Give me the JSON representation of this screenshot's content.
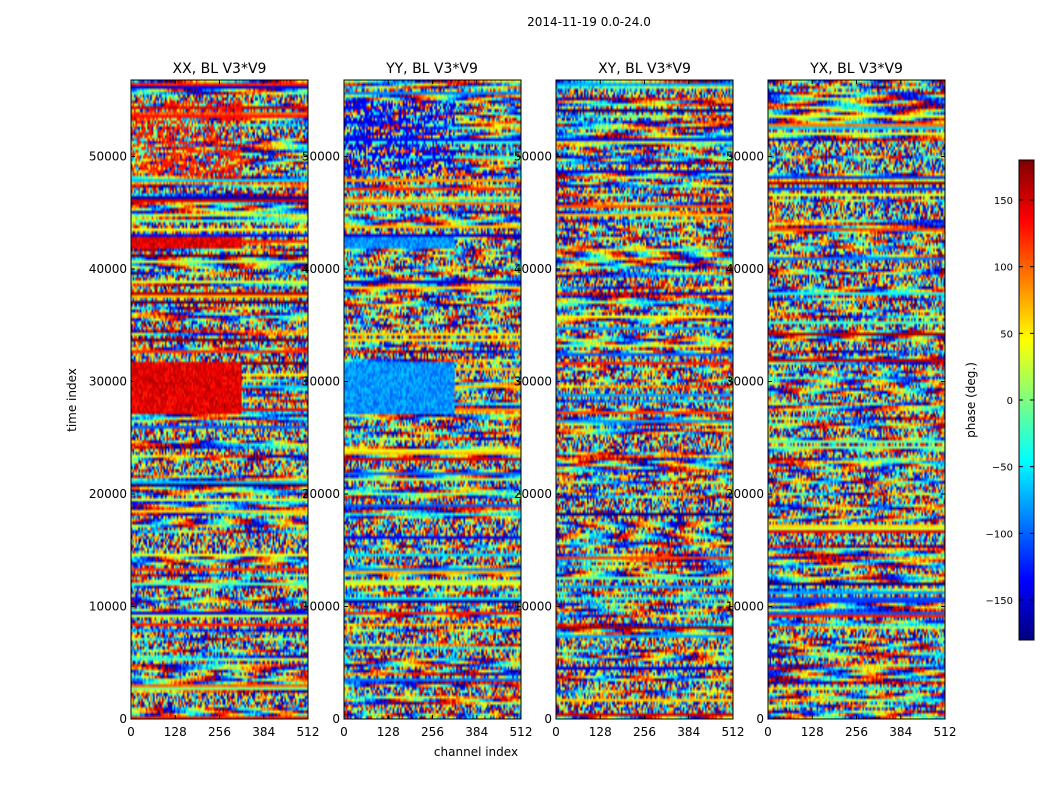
{
  "chart_data": {
    "type": "heatmap",
    "title": "2014-11-19 0.0-24.0",
    "xlabel": "channel index",
    "ylabel": "time index",
    "xlim": [
      0,
      512
    ],
    "ylim": [
      0,
      56800
    ],
    "x_ticks": [
      0,
      128,
      256,
      384,
      512
    ],
    "y_ticks": [
      0,
      10000,
      20000,
      30000,
      40000,
      50000
    ],
    "x_tick_labels": [
      "0",
      "128",
      "256",
      "384",
      "512"
    ],
    "y_tick_labels": [
      "0",
      "10000",
      "20000",
      "30000",
      "40000",
      "50000"
    ],
    "panels": [
      {
        "id": "xx",
        "title": "XX, BL V3*V9",
        "polarization": "XX"
      },
      {
        "id": "yy",
        "title": "YY, BL V3*V9",
        "polarization": "YY"
      },
      {
        "id": "xy",
        "title": "XY, BL V3*V9",
        "polarization": "XY"
      },
      {
        "id": "yx",
        "title": "YX, BL V3*V9",
        "polarization": "YX"
      }
    ],
    "colorbar": {
      "label": "phase (deg.)",
      "range": [
        -180,
        180
      ],
      "ticks": [
        -150,
        -100,
        -50,
        0,
        50,
        100,
        150
      ],
      "tick_labels": [
        "−150",
        "−100",
        "−50",
        "0",
        "50",
        "100",
        "150"
      ],
      "colormap": "jet",
      "colors": [
        "#00007f",
        "#0000ff",
        "#007fff",
        "#00ffff",
        "#7fff7f",
        "#ffff00",
        "#ff7f00",
        "#ff0000",
        "#7f0000"
      ]
    }
  }
}
